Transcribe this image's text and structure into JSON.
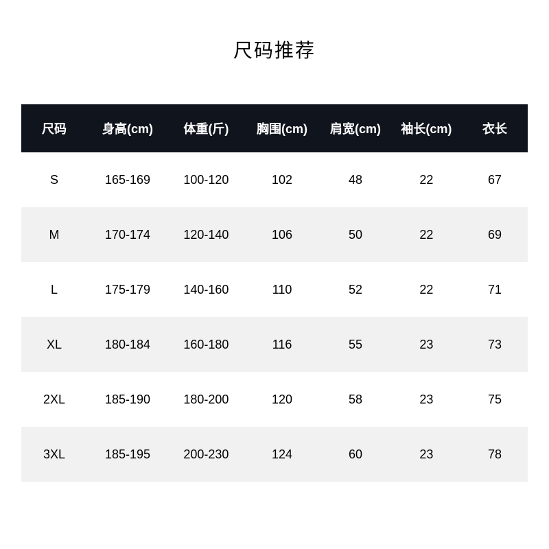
{
  "title": "尺码推荐",
  "table": {
    "type": "table",
    "header_bg_color": "#10141c",
    "header_text_color": "#ffffff",
    "row_even_bg": "#ffffff",
    "row_odd_bg": "#f1f1f1",
    "cell_text_color": "#000000",
    "header_fontsize": 18,
    "cell_fontsize": 18,
    "columns": [
      {
        "label": "尺码",
        "width": "13%"
      },
      {
        "label": "身高(cm)",
        "width": "16%"
      },
      {
        "label": "体重(斤)",
        "width": "15%"
      },
      {
        "label": "胸围(cm)",
        "width": "15%"
      },
      {
        "label": "肩宽(cm)",
        "width": "14%"
      },
      {
        "label": "袖长(cm)",
        "width": "14%"
      },
      {
        "label": "衣长",
        "width": "13%"
      }
    ],
    "rows": [
      [
        "S",
        "165-169",
        "100-120",
        "102",
        "48",
        "22",
        "67"
      ],
      [
        "M",
        "170-174",
        "120-140",
        "106",
        "50",
        "22",
        "69"
      ],
      [
        "L",
        "175-179",
        "140-160",
        "110",
        "52",
        "22",
        "71"
      ],
      [
        "XL",
        "180-184",
        "160-180",
        "116",
        "55",
        "23",
        "73"
      ],
      [
        "2XL",
        "185-190",
        "180-200",
        "120",
        "58",
        "23",
        "75"
      ],
      [
        "3XL",
        "185-195",
        "200-230",
        "124",
        "60",
        "23",
        "78"
      ]
    ]
  }
}
